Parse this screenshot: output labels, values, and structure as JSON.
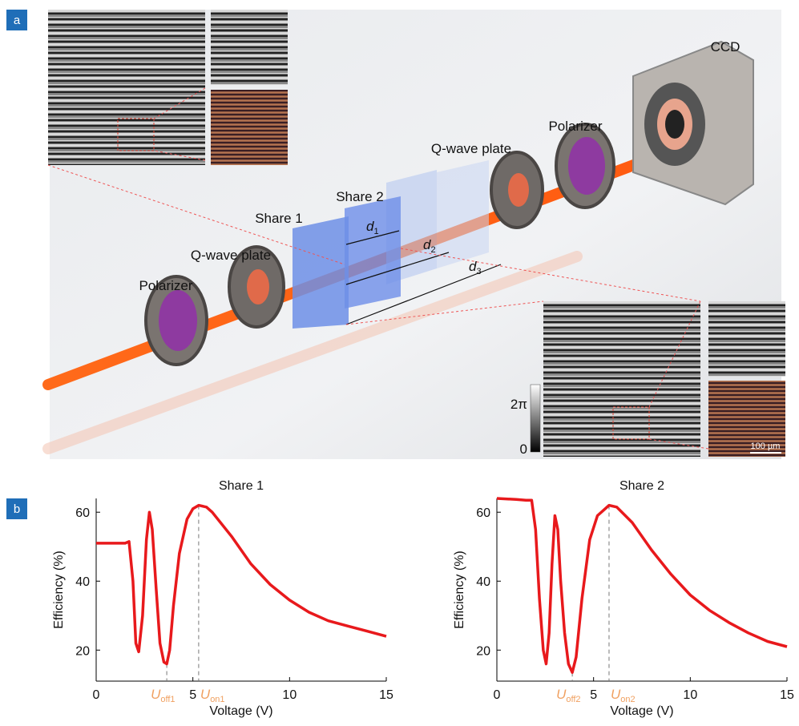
{
  "panel_labels": [
    "a",
    "b"
  ],
  "panel_a": {
    "ccd": "CCD",
    "polarizer_right": "Polarizer",
    "qwave_right": "Q-wave plate",
    "share2": "Share 2",
    "share1": "Share 1",
    "qwave_left": "Q-wave plate",
    "polarizer_left": "Polarizer",
    "distances": [
      {
        "symbol": "d",
        "subscript": "1"
      },
      {
        "symbol": "d",
        "subscript": "2"
      },
      {
        "symbol": "d",
        "subscript": "3"
      }
    ],
    "colorbar_top": "2π",
    "colorbar_bottom": "0",
    "scale_bar": "100 µm"
  },
  "chart_data": [
    {
      "type": "line",
      "title": "Share 1",
      "xlabel": "Voltage (V)",
      "ylabel": "Efficiency (%)",
      "color": "#e8191c",
      "x": [
        0,
        1,
        1.5,
        1.7,
        1.9,
        2.05,
        2.2,
        2.4,
        2.6,
        2.75,
        2.9,
        3.1,
        3.3,
        3.5,
        3.65,
        3.8,
        4.0,
        4.3,
        4.7,
        5.0,
        5.3,
        5.7,
        6,
        7,
        8,
        9,
        10,
        11,
        12,
        13,
        14,
        15
      ],
      "values": [
        51,
        51,
        51,
        51.5,
        40,
        22,
        19.5,
        30,
        52,
        60,
        55,
        38,
        22,
        16.5,
        16,
        20,
        33,
        48,
        58,
        61,
        62,
        61.5,
        60,
        53,
        45,
        39,
        34.5,
        31,
        28.5,
        27,
        25.5,
        24
      ],
      "xlim": [
        0,
        15
      ],
      "ylim": [
        11,
        64
      ],
      "xticks": [
        0,
        5,
        10,
        15
      ],
      "yticks": [
        20,
        40,
        60
      ],
      "markers": [
        {
          "x": 3.65,
          "y": 16,
          "symbol": "U",
          "subscript": "off1"
        },
        {
          "x": 5.3,
          "y": 62,
          "symbol": "U",
          "subscript": "on1"
        }
      ]
    },
    {
      "type": "line",
      "title": "Share 2",
      "xlabel": "Voltage (V)",
      "ylabel": "Efficiency (%)",
      "color": "#e8191c",
      "x": [
        0,
        1,
        1.5,
        1.8,
        2.0,
        2.2,
        2.4,
        2.55,
        2.7,
        2.85,
        3.0,
        3.15,
        3.3,
        3.5,
        3.7,
        3.9,
        4.1,
        4.4,
        4.8,
        5.2,
        5.8,
        6.2,
        7,
        8,
        9,
        10,
        11,
        12,
        13,
        14,
        15
      ],
      "values": [
        64,
        63.7,
        63.5,
        63.5,
        55,
        35,
        20,
        16,
        25,
        45,
        59,
        55,
        40,
        25,
        16,
        13.5,
        18,
        35,
        52,
        59,
        62,
        61.5,
        57,
        49,
        42,
        36,
        31.5,
        28,
        25,
        22.5,
        21
      ],
      "xlim": [
        0,
        15
      ],
      "ylim": [
        11,
        64
      ],
      "xticks": [
        0,
        5,
        10,
        15
      ],
      "yticks": [
        20,
        40,
        60
      ],
      "markers": [
        {
          "x": 3.9,
          "y": 13.5,
          "symbol": "U",
          "subscript": "off2"
        },
        {
          "x": 5.8,
          "y": 62,
          "symbol": "U",
          "subscript": "on2"
        }
      ]
    }
  ]
}
